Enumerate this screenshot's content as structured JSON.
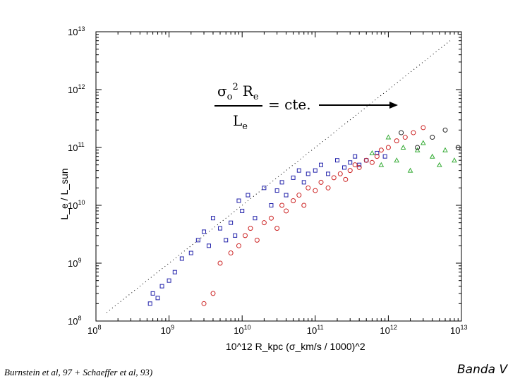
{
  "chart_data": {
    "type": "scatter",
    "title": "",
    "xlabel": "10^12 R_kpc (σ_km/s / 1000)^2",
    "ylabel": "L_e / L_sun",
    "xscale": "log",
    "yscale": "log",
    "xlim": [
      100000000.0,
      10000000000000.0
    ],
    "ylim": [
      100000000.0,
      10000000000000.0
    ],
    "x_tick_labels": [
      {
        "base": "10",
        "exp": "8"
      },
      {
        "base": "10",
        "exp": "9"
      },
      {
        "base": "10",
        "exp": "10"
      },
      {
        "base": "10",
        "exp": "11"
      },
      {
        "base": "10",
        "exp": "12"
      },
      {
        "base": "10",
        "exp": "13"
      }
    ],
    "y_tick_labels": [
      {
        "base": "10",
        "exp": "8"
      },
      {
        "base": "10",
        "exp": "9"
      },
      {
        "base": "10",
        "exp": "10"
      },
      {
        "base": "10",
        "exp": "11"
      },
      {
        "base": "10",
        "exp": "12"
      },
      {
        "base": "10",
        "exp": "13"
      }
    ],
    "reference_line": {
      "style": "dotted",
      "relation": "y = x",
      "label": "σ_o² R_e / L_e = cte."
    },
    "series": [
      {
        "name": "squares",
        "marker": "square",
        "color": "#2222aa",
        "x": [
          550000000.0,
          600000000.0,
          700000000.0,
          800000000.0,
          1000000000.0,
          1200000000.0,
          1500000000.0,
          2000000000.0,
          2500000000.0,
          3000000000.0,
          3500000000.0,
          4000000000.0,
          5000000000.0,
          6000000000.0,
          7000000000.0,
          8000000000.0,
          9000000000.0,
          10000000000.0,
          12000000000.0,
          15000000000.0,
          20000000000.0,
          25000000000.0,
          30000000000.0,
          35000000000.0,
          40000000000.0,
          50000000000.0,
          60000000000.0,
          70000000000.0,
          80000000000.0,
          100000000000.0,
          120000000000.0,
          150000000000.0,
          200000000000.0,
          250000000000.0,
          300000000000.0,
          350000000000.0,
          400000000000.0,
          500000000000.0,
          700000000000.0,
          900000000000.0
        ],
        "y": [
          200000000.0,
          300000000.0,
          250000000.0,
          400000000.0,
          500000000.0,
          700000000.0,
          1200000000.0,
          1500000000.0,
          2500000000.0,
          3500000000.0,
          2000000000.0,
          6000000000.0,
          4000000000.0,
          2500000000.0,
          5000000000.0,
          3000000000.0,
          12000000000.0,
          8000000000.0,
          15000000000.0,
          6000000000.0,
          20000000000.0,
          10000000000.0,
          18000000000.0,
          25000000000.0,
          15000000000.0,
          30000000000.0,
          40000000000.0,
          25000000000.0,
          35000000000.0,
          40000000000.0,
          50000000000.0,
          35000000000.0,
          60000000000.0,
          45000000000.0,
          55000000000.0,
          70000000000.0,
          50000000000.0,
          60000000000.0,
          80000000000.0,
          70000000000.0
        ]
      },
      {
        "name": "circles",
        "marker": "circle",
        "color": "#cc2222",
        "x": [
          3000000000.0,
          4000000000.0,
          5000000000.0,
          7000000000.0,
          9000000000.0,
          11000000000.0,
          13000000000.0,
          16000000000.0,
          20000000000.0,
          25000000000.0,
          30000000000.0,
          35000000000.0,
          40000000000.0,
          50000000000.0,
          60000000000.0,
          70000000000.0,
          80000000000.0,
          100000000000.0,
          120000000000.0,
          150000000000.0,
          180000000000.0,
          220000000000.0,
          260000000000.0,
          300000000000.0,
          350000000000.0,
          400000000000.0,
          500000000000.0,
          600000000000.0,
          700000000000.0,
          800000000000.0,
          1000000000000.0,
          1300000000000.0,
          1700000000000.0,
          2200000000000.0,
          3000000000000.0
        ],
        "y": [
          200000000.0,
          300000000.0,
          1000000000.0,
          1500000000.0,
          2000000000.0,
          3000000000.0,
          4000000000.0,
          2500000000.0,
          5000000000.0,
          6000000000.0,
          4000000000.0,
          10000000000.0,
          8000000000.0,
          12000000000.0,
          15000000000.0,
          10000000000.0,
          20000000000.0,
          18000000000.0,
          25000000000.0,
          20000000000.0,
          30000000000.0,
          35000000000.0,
          28000000000.0,
          40000000000.0,
          50000000000.0,
          45000000000.0,
          60000000000.0,
          55000000000.0,
          70000000000.0,
          90000000000.0,
          100000000000.0,
          130000000000.0,
          150000000000.0,
          180000000000.0,
          220000000000.0
        ]
      },
      {
        "name": "triangles",
        "marker": "triangle",
        "color": "#33aa33",
        "x": [
          600000000000.0,
          800000000000.0,
          1000000000000.0,
          1300000000000.0,
          1600000000000.0,
          2000000000000.0,
          2500000000000.0,
          3000000000000.0,
          4000000000000.0,
          5000000000000.0,
          6000000000000.0,
          8000000000000.0
        ],
        "y": [
          80000000000.0,
          50000000000.0,
          150000000000.0,
          60000000000.0,
          100000000000.0,
          40000000000.0,
          90000000000.0,
          120000000000.0,
          70000000000.0,
          50000000000.0,
          90000000000.0,
          60000000000.0
        ]
      },
      {
        "name": "open-circles-black",
        "marker": "circle",
        "color": "#222222",
        "x": [
          1500000000000.0,
          2500000000000.0,
          4000000000000.0,
          6000000000000.0,
          9000000000000.0
        ],
        "y": [
          180000000000.0,
          100000000000.0,
          150000000000.0,
          200000000000.0,
          100000000000.0
        ]
      }
    ]
  },
  "equation": {
    "sigma": "σ",
    "sigma_sub": "o",
    "power": "2",
    "r": "R",
    "r_sub": "e",
    "denominator": "L",
    "denominator_sub": "e",
    "rhs": "= cte."
  },
  "citation": "Burnstein et al, 97 + Schaeffer et al, 93)",
  "band_label": "Banda V"
}
